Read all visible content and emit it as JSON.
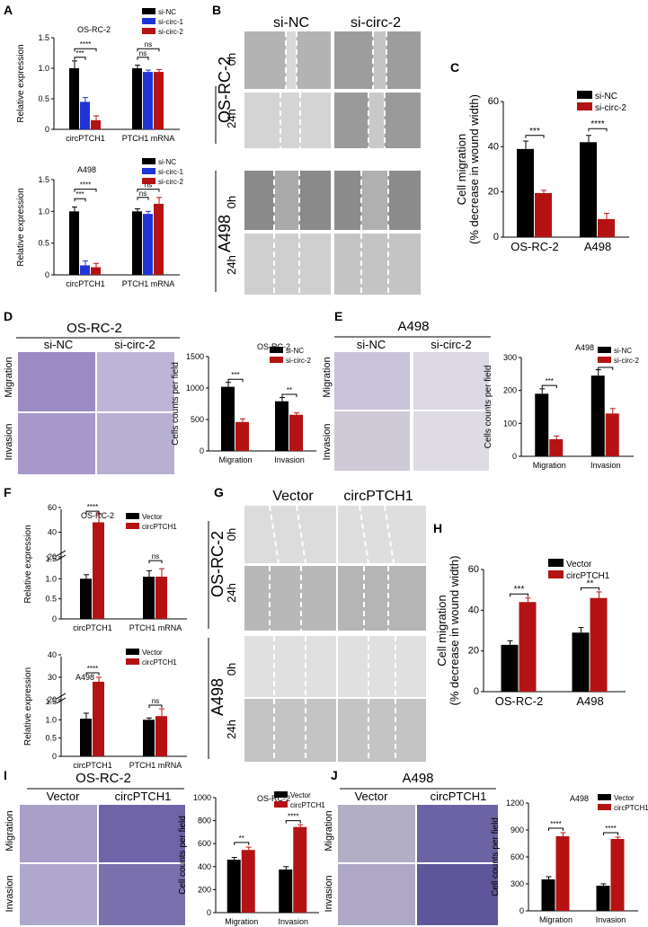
{
  "figure": {
    "panels": [
      "A",
      "B",
      "C",
      "D",
      "E",
      "F",
      "G",
      "H",
      "I",
      "J"
    ]
  },
  "colors": {
    "black": "#000000",
    "red": "#b51313",
    "blue": "#1f33d6",
    "tissue_purple": "#6a5aa8",
    "wound_gray": "#a6a6a6"
  },
  "panelB": {
    "col_labels": [
      "si-NC",
      "si-circ-2"
    ],
    "row_groups": [
      {
        "name": "OS-RC-2",
        "rows": [
          "0h",
          "24h"
        ]
      },
      {
        "name": "A498",
        "rows": [
          "0h",
          "24h"
        ]
      }
    ]
  },
  "panelD": {
    "title": "OS-RC-2",
    "col_labels": [
      "si-NC",
      "si-circ-2"
    ],
    "row_labels": [
      "Migration",
      "Invasion"
    ]
  },
  "panelE": {
    "title": "A498",
    "col_labels": [
      "si-NC",
      "si-circ-2"
    ],
    "row_labels": [
      "Migration",
      "Invasion"
    ]
  },
  "panelG": {
    "col_labels": [
      "Vector",
      "circPTCH1"
    ],
    "row_groups": [
      {
        "name": "OS-RC-2",
        "rows": [
          "0h",
          "24h"
        ]
      },
      {
        "name": "A498",
        "rows": [
          "0h",
          "24h"
        ]
      }
    ]
  },
  "panelI": {
    "title": "OS-RC-2",
    "col_labels": [
      "Vector",
      "circPTCH1"
    ],
    "row_labels": [
      "Migration",
      "Invasion"
    ]
  },
  "panelJ": {
    "title": "A498",
    "col_labels": [
      "Vector",
      "circPTCH1"
    ],
    "row_labels": [
      "Migration",
      "Invasion"
    ]
  },
  "chart_data": [
    {
      "id": "A1",
      "type": "bar",
      "title": "OS-RC-2",
      "ylabel": "Relative expression",
      "categories": [
        "circPTCH1",
        "PTCH1 mRNA"
      ],
      "ylim": [
        0,
        1.5
      ],
      "yticks": [
        0,
        0.5,
        1.0,
        1.5
      ],
      "series": [
        {
          "name": "si-NC",
          "color": "#000000",
          "values": [
            1.0,
            1.0
          ],
          "err": [
            0.12,
            0.05
          ]
        },
        {
          "name": "si-circ-1",
          "color": "#1f33d6",
          "values": [
            0.45,
            0.94
          ],
          "err": [
            0.07,
            0.03
          ]
        },
        {
          "name": "si-circ-2",
          "color": "#b51313",
          "values": [
            0.15,
            0.94
          ],
          "err": [
            0.07,
            0.04
          ]
        }
      ],
      "sig": [
        {
          "cat": 0,
          "from": 0,
          "to": 2,
          "label": "****",
          "y": 1.32
        },
        {
          "cat": 0,
          "from": 0,
          "to": 1,
          "label": "***",
          "y": 1.18
        },
        {
          "cat": 1,
          "from": 0,
          "to": 2,
          "label": "ns",
          "y": 1.32
        },
        {
          "cat": 1,
          "from": 0,
          "to": 1,
          "label": "ns",
          "y": 1.18
        }
      ]
    },
    {
      "id": "A2",
      "type": "bar",
      "title": "A498",
      "ylabel": "Relative expression",
      "categories": [
        "circPTCH1",
        "PTCH1 mRNA"
      ],
      "ylim": [
        0,
        1.5
      ],
      "yticks": [
        0,
        0.5,
        1.0,
        1.5
      ],
      "series": [
        {
          "name": "si-NC",
          "color": "#000000",
          "values": [
            1.0,
            1.0
          ],
          "err": [
            0.07,
            0.04
          ]
        },
        {
          "name": "si-circ-1",
          "color": "#1f33d6",
          "values": [
            0.15,
            0.96
          ],
          "err": [
            0.07,
            0.04
          ]
        },
        {
          "name": "si-circ-2",
          "color": "#b51313",
          "values": [
            0.12,
            1.12
          ],
          "err": [
            0.06,
            0.1
          ]
        }
      ],
      "sig": [
        {
          "cat": 0,
          "from": 0,
          "to": 2,
          "label": "****",
          "y": 1.35
        },
        {
          "cat": 0,
          "from": 0,
          "to": 1,
          "label": "***",
          "y": 1.2
        },
        {
          "cat": 1,
          "from": 0,
          "to": 2,
          "label": "ns",
          "y": 1.35
        },
        {
          "cat": 1,
          "from": 0,
          "to": 1,
          "label": "ns",
          "y": 1.22
        }
      ]
    },
    {
      "id": "C",
      "type": "bar",
      "title": "",
      "ylabel": "Cell migration\n(% decrease in wound width)",
      "categories": [
        "OS-RC-2",
        "A498"
      ],
      "ylim": [
        0,
        60
      ],
      "yticks": [
        0,
        20,
        40,
        60
      ],
      "series": [
        {
          "name": "si-NC",
          "color": "#000000",
          "values": [
            39,
            42
          ],
          "err": [
            3.5,
            3
          ]
        },
        {
          "name": "si-circ-2",
          "color": "#b51313",
          "values": [
            19.5,
            8
          ],
          "err": [
            1.2,
            2.5
          ]
        }
      ],
      "sig": [
        {
          "cat": 0,
          "from": 0,
          "to": 1,
          "label": "***",
          "y": 45
        },
        {
          "cat": 1,
          "from": 0,
          "to": 1,
          "label": "****",
          "y": 48
        }
      ]
    },
    {
      "id": "D",
      "type": "bar",
      "title": "OS-RC-2",
      "ylabel": "Cells counts per field",
      "categories": [
        "Migration",
        "Invasion"
      ],
      "ylim": [
        0,
        1500
      ],
      "yticks": [
        0,
        500,
        1000,
        1500
      ],
      "series": [
        {
          "name": "si-NC",
          "color": "#000000",
          "values": [
            1020,
            790
          ],
          "err": [
            70,
            60
          ]
        },
        {
          "name": "si-circ-2",
          "color": "#b51313",
          "values": [
            460,
            575
          ],
          "err": [
            50,
            30
          ]
        }
      ],
      "sig": [
        {
          "cat": 0,
          "from": 0,
          "to": 1,
          "label": "***",
          "y": 1140
        },
        {
          "cat": 1,
          "from": 0,
          "to": 1,
          "label": "**",
          "y": 900
        }
      ]
    },
    {
      "id": "E",
      "type": "bar",
      "title": "A498",
      "ylabel": "Cells counts per field",
      "categories": [
        "Migration",
        "Invasion"
      ],
      "ylim": [
        0,
        300
      ],
      "yticks": [
        0,
        100,
        200,
        300
      ],
      "series": [
        {
          "name": "si-NC",
          "color": "#000000",
          "values": [
            190,
            245
          ],
          "err": [
            15,
            18
          ]
        },
        {
          "name": "si-circ-2",
          "color": "#b51313",
          "values": [
            52,
            130
          ],
          "err": [
            10,
            15
          ]
        }
      ],
      "sig": [
        {
          "cat": 0,
          "from": 0,
          "to": 1,
          "label": "***",
          "y": 215
        },
        {
          "cat": 1,
          "from": 0,
          "to": 1,
          "label": "**",
          "y": 270
        }
      ]
    },
    {
      "id": "F1",
      "type": "bar",
      "title": "OS-RC-2",
      "ylabel": "Relative expression",
      "categories": [
        "circPTCH1",
        "PTCH1 mRNA"
      ],
      "ylim": [
        0,
        60
      ],
      "yticks": [
        0,
        0.5,
        1.0,
        1.5,
        20,
        40,
        60
      ],
      "broken_axis": true,
      "series": [
        {
          "name": "Vector",
          "color": "#000000",
          "values": [
            1.0,
            1.05
          ],
          "err": [
            0.1,
            0.15
          ]
        },
        {
          "name": "circPTCH1",
          "color": "#b51313",
          "values": [
            48,
            1.05
          ],
          "err": [
            7,
            0.2
          ]
        }
      ],
      "sig": [
        {
          "cat": 0,
          "from": 0,
          "to": 1,
          "label": "****",
          "y": 57
        },
        {
          "cat": 1,
          "from": 0,
          "to": 1,
          "label": "ns",
          "y": 1.45
        }
      ]
    },
    {
      "id": "F2",
      "type": "bar",
      "title": "A498",
      "ylabel": "Relative expression",
      "categories": [
        "circPTCH1",
        "PTCH1 mRNA"
      ],
      "ylim": [
        0,
        40
      ],
      "yticks": [
        0,
        0.5,
        1.0,
        1.5,
        20,
        30,
        40
      ],
      "broken_axis": true,
      "series": [
        {
          "name": "Vector",
          "color": "#000000",
          "values": [
            1.03,
            1.0
          ],
          "err": [
            0.15,
            0.05
          ]
        },
        {
          "name": "circPTCH1",
          "color": "#b51313",
          "values": [
            28,
            1.1
          ],
          "err": [
            2,
            0.2
          ]
        }
      ],
      "sig": [
        {
          "cat": 0,
          "from": 0,
          "to": 1,
          "label": "****",
          "y": 32
        },
        {
          "cat": 1,
          "from": 0,
          "to": 1,
          "label": "ns",
          "y": 1.4
        }
      ]
    },
    {
      "id": "H",
      "type": "bar",
      "title": "",
      "ylabel": "Cell migration\n(% decrease in wound width)",
      "categories": [
        "OS-RC-2",
        "A498"
      ],
      "ylim": [
        0,
        60
      ],
      "yticks": [
        0,
        20,
        40,
        60
      ],
      "series": [
        {
          "name": "Vector",
          "color": "#000000",
          "values": [
            23,
            29
          ],
          "err": [
            2,
            2.5
          ]
        },
        {
          "name": "circPTCH1",
          "color": "#b51313",
          "values": [
            44,
            46
          ],
          "err": [
            2,
            3
          ]
        }
      ],
      "sig": [
        {
          "cat": 0,
          "from": 0,
          "to": 1,
          "label": "***",
          "y": 48
        },
        {
          "cat": 1,
          "from": 0,
          "to": 1,
          "label": "**",
          "y": 51
        }
      ]
    },
    {
      "id": "I",
      "type": "bar",
      "title": "OS-RC-2",
      "ylabel": "Cell counts per field",
      "categories": [
        "Migration",
        "Invasion"
      ],
      "ylim": [
        0,
        1000
      ],
      "yticks": [
        0,
        200,
        400,
        600,
        800,
        1000
      ],
      "series": [
        {
          "name": "Vector",
          "color": "#000000",
          "values": [
            460,
            375
          ],
          "err": [
            20,
            25
          ]
        },
        {
          "name": "circPTCH1",
          "color": "#b51313",
          "values": [
            545,
            745
          ],
          "err": [
            25,
            20
          ]
        }
      ],
      "sig": [
        {
          "cat": 0,
          "from": 0,
          "to": 1,
          "label": "**",
          "y": 610
        },
        {
          "cat": 1,
          "from": 0,
          "to": 1,
          "label": "****",
          "y": 800
        }
      ]
    },
    {
      "id": "J",
      "type": "bar",
      "title": "A498",
      "ylabel": "Cell counts per field",
      "categories": [
        "Migration",
        "Invasion"
      ],
      "ylim": [
        0,
        1200
      ],
      "yticks": [
        0,
        300,
        600,
        900,
        1200
      ],
      "series": [
        {
          "name": "Vector",
          "color": "#000000",
          "values": [
            350,
            280
          ],
          "err": [
            30,
            20
          ]
        },
        {
          "name": "circPTCH1",
          "color": "#b51313",
          "values": [
            830,
            800
          ],
          "err": [
            40,
            20
          ]
        }
      ],
      "sig": [
        {
          "cat": 0,
          "from": 0,
          "to": 1,
          "label": "****",
          "y": 920
        },
        {
          "cat": 1,
          "from": 0,
          "to": 1,
          "label": "****",
          "y": 870
        }
      ]
    }
  ]
}
